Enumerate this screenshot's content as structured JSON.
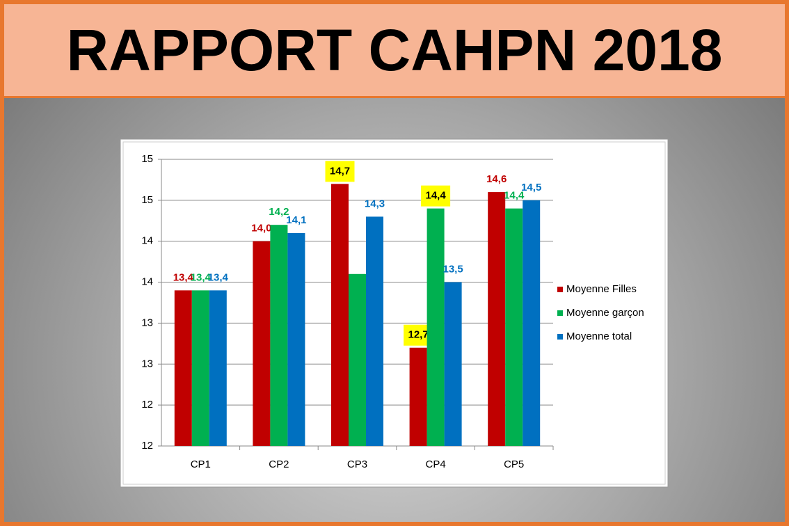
{
  "chart_data": {
    "type": "bar",
    "title": "RAPPORT CAHPN 2018",
    "categories": [
      "CP1",
      "CP2",
      "CP3",
      "CP4",
      "CP5"
    ],
    "series": [
      {
        "name": "Moyenne Filles",
        "color": "#c00000",
        "values": [
          13.4,
          14.0,
          14.7,
          12.7,
          14.6
        ],
        "value_labels": [
          "13,4",
          "14,0",
          "14,7",
          "12,7",
          "14,6"
        ],
        "label_highlight": [
          false,
          false,
          true,
          true,
          false
        ]
      },
      {
        "name": "Moyenne garçon",
        "color": "#00b050",
        "values": [
          13.4,
          14.2,
          13.6,
          14.4,
          14.4
        ],
        "value_labels": [
          "13,4",
          "14,2",
          null,
          "14,4",
          "14,4"
        ],
        "label_highlight": [
          false,
          false,
          false,
          true,
          false
        ]
      },
      {
        "name": "Moyenne total",
        "color": "#0070c0",
        "values": [
          13.4,
          14.1,
          14.3,
          13.5,
          14.5
        ],
        "value_labels": [
          "13,4",
          "14,1",
          "14,3",
          "13,5",
          "14,5"
        ],
        "label_highlight": [
          false,
          false,
          false,
          false,
          false
        ]
      }
    ],
    "ylim": [
      11.5,
      15
    ],
    "yticks": [
      {
        "value": 11.5,
        "label": "12"
      },
      12,
      {
        "value": 12.5,
        "label": "13"
      },
      13,
      {
        "value": 13.5,
        "label": "14"
      },
      14,
      {
        "value": 14.5,
        "label": "15"
      },
      15
    ],
    "grid": true,
    "legend": "right"
  }
}
